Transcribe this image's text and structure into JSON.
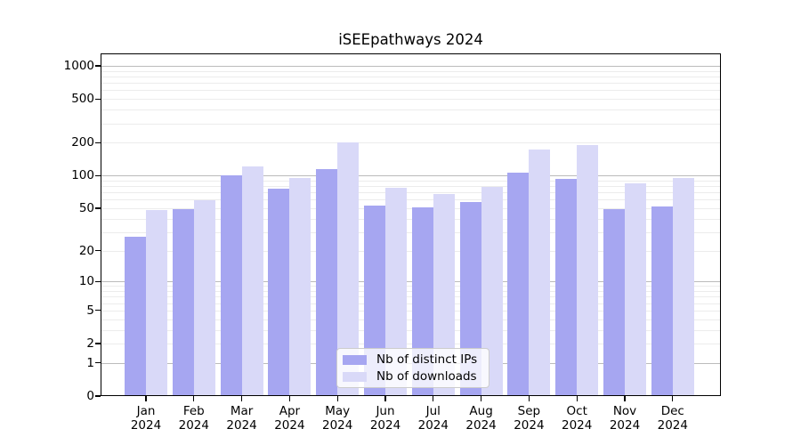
{
  "title": "iSEEpathways 2024",
  "chart_data": {
    "type": "bar",
    "title": "iSEEpathways 2024",
    "y_scale": "log1p",
    "grid": true,
    "legend_position": "lower center",
    "categories": [
      "Jan 2024",
      "Feb 2024",
      "Mar 2024",
      "Apr 2024",
      "May 2024",
      "Jun 2024",
      "Jul 2024",
      "Aug 2024",
      "Sep 2024",
      "Oct 2024",
      "Nov 2024",
      "Dec 2024"
    ],
    "series": [
      {
        "name": "Nb of distinct IPs",
        "color": "#a6a6f1",
        "values": [
          27,
          49,
          100,
          76,
          115,
          53,
          51,
          57,
          107,
          93,
          49,
          52
        ]
      },
      {
        "name": "Nb of downloads",
        "color": "#d9d9f8",
        "values": [
          48,
          59,
          121,
          95,
          200,
          77,
          68,
          78,
          174,
          190,
          85,
          94
        ]
      }
    ],
    "y_ticks": [
      0,
      1,
      2,
      5,
      10,
      20,
      50,
      100,
      200,
      500,
      1000
    ],
    "major_gridline_values": [
      1,
      10,
      100,
      1000
    ],
    "ylim": [
      0,
      1300
    ]
  },
  "colors": {
    "grid_major": "#bbbbbb",
    "grid_minor": "#ececec",
    "spine": "#000000",
    "text": "#000000",
    "legend_border": "#cccccc",
    "legend_background": "rgba(255,255,255,0.8)"
  }
}
